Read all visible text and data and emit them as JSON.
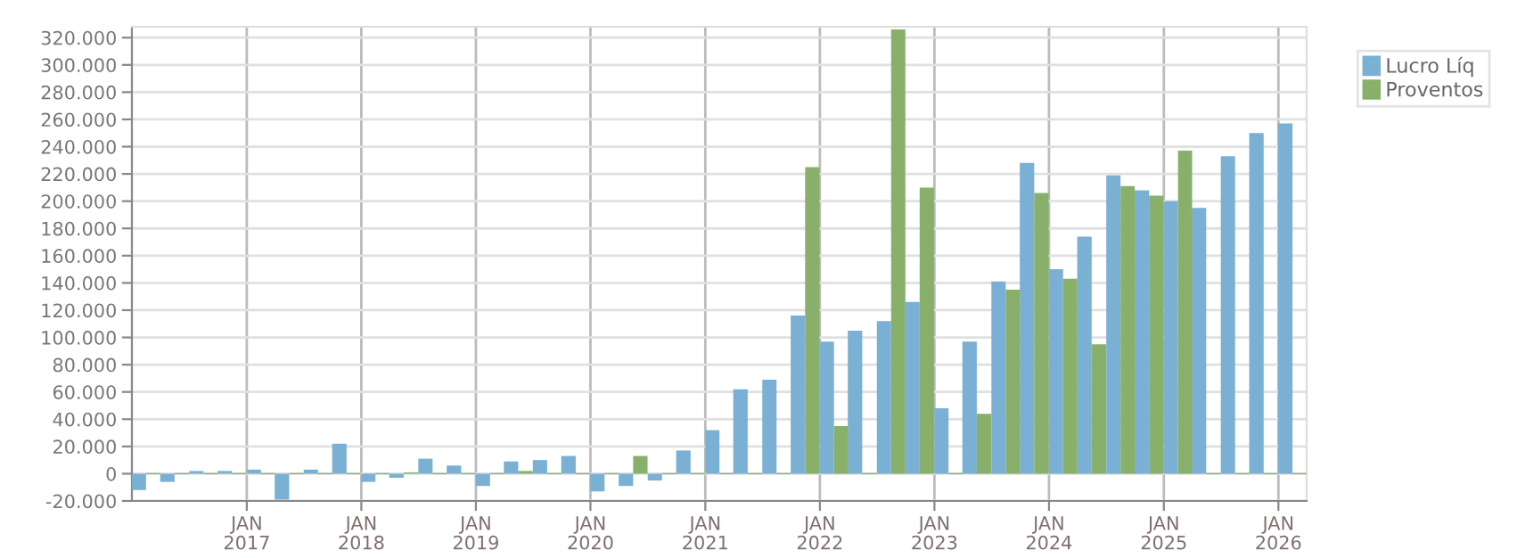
{
  "chart_data": {
    "type": "bar",
    "x": [
      "2016-02-15",
      "2016-05-16",
      "2016-08-16",
      "2016-11-15",
      "2017-02-15",
      "2017-05-16",
      "2017-08-16",
      "2017-11-15",
      "2018-02-15",
      "2018-05-16",
      "2018-08-16",
      "2018-11-15",
      "2019-02-15",
      "2019-05-16",
      "2019-08-16",
      "2019-11-15",
      "2020-02-15",
      "2020-05-16",
      "2020-08-16",
      "2020-11-15",
      "2021-02-15",
      "2021-05-16",
      "2021-08-16",
      "2021-11-15",
      "2022-02-15",
      "2022-05-16",
      "2022-08-16",
      "2022-11-15",
      "2023-02-15",
      "2023-05-16",
      "2023-08-16",
      "2023-11-15",
      "2024-02-15",
      "2024-05-16",
      "2024-08-16",
      "2024-11-15",
      "2025-02-15",
      "2025-05-16",
      "2025-08-16",
      "2025-11-15",
      "2026-02-15"
    ],
    "series": [
      {
        "name": "Lucro Líq",
        "color": "#7ab0d4",
        "values": [
          -12000,
          -6000,
          2000,
          2000,
          3000,
          -19000,
          3000,
          22000,
          -6000,
          -3000,
          11000,
          6000,
          -9000,
          9000,
          10000,
          13000,
          -13000,
          -9000,
          -5000,
          17000,
          32000,
          62000,
          69000,
          116000,
          97000,
          105000,
          112000,
          126000,
          48000,
          97000,
          141000,
          228000,
          150000,
          174000,
          219000,
          208000,
          200000,
          195000,
          233000,
          250000,
          257000
        ]
      },
      {
        "name": "Proventos",
        "color": "#88b06a",
        "values": [
          0,
          0,
          0,
          0,
          0,
          0,
          0,
          0,
          0,
          1000,
          0,
          0,
          0,
          2000,
          0,
          0,
          0,
          13000,
          0,
          0,
          0,
          0,
          0,
          225000,
          35000,
          0,
          326000,
          210000,
          0,
          44000,
          135000,
          206000,
          143000,
          95000,
          211000,
          204000,
          237000,
          0,
          0,
          0,
          0
        ]
      }
    ],
    "xlim": [
      "2016-01",
      "2026-04"
    ],
    "xticks": [
      {
        "value": "2017-01",
        "label": "JAN\n2017"
      },
      {
        "value": "2018-01",
        "label": "JAN\n2018"
      },
      {
        "value": "2019-01",
        "label": "JAN\n2019"
      },
      {
        "value": "2020-01",
        "label": "JAN\n2020"
      },
      {
        "value": "2021-01",
        "label": "JAN\n2021"
      },
      {
        "value": "2022-01",
        "label": "JAN\n2022"
      },
      {
        "value": "2023-01",
        "label": "JAN\n2023"
      },
      {
        "value": "2024-01",
        "label": "JAN\n2024"
      },
      {
        "value": "2025-01",
        "label": "JAN\n2025"
      },
      {
        "value": "2026-01",
        "label": "JAN\n2026"
      }
    ],
    "ylim": [
      -20000,
      328000
    ],
    "yticks": [
      {
        "value": -20000,
        "label": "-20.000"
      },
      {
        "value": 0,
        "label": "0"
      },
      {
        "value": 20000,
        "label": "20.000"
      },
      {
        "value": 40000,
        "label": "40.000"
      },
      {
        "value": 60000,
        "label": "60.000"
      },
      {
        "value": 80000,
        "label": "80.000"
      },
      {
        "value": 100000,
        "label": "100.000"
      },
      {
        "value": 120000,
        "label": "120.000"
      },
      {
        "value": 140000,
        "label": "140.000"
      },
      {
        "value": 160000,
        "label": "160.000"
      },
      {
        "value": 180000,
        "label": "180.000"
      },
      {
        "value": 200000,
        "label": "200.000"
      },
      {
        "value": 220000,
        "label": "220.000"
      },
      {
        "value": 240000,
        "label": "240.000"
      },
      {
        "value": 260000,
        "label": "260.000"
      },
      {
        "value": 280000,
        "label": "280.000"
      },
      {
        "value": 300000,
        "label": "300.000"
      },
      {
        "value": 320000,
        "label": "320.000"
      }
    ],
    "grid": true,
    "legend": "top right"
  }
}
